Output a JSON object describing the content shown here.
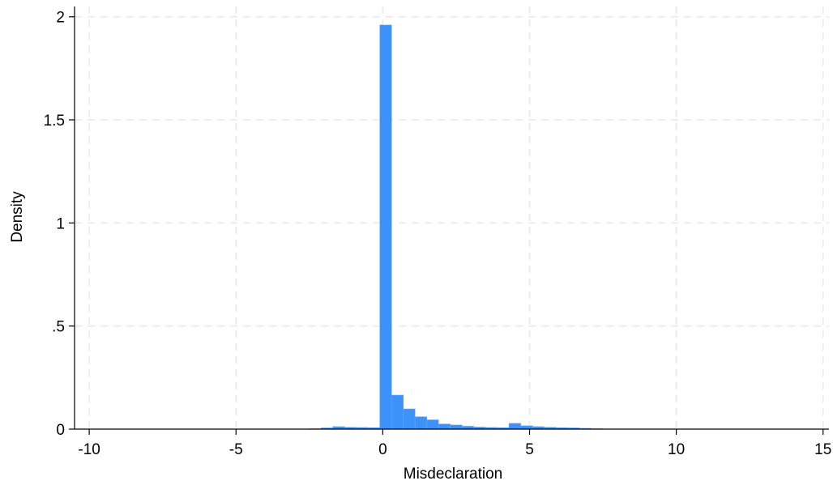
{
  "chart_data": {
    "type": "bar",
    "xlabel": "Misdeclaration",
    "ylabel": "Density",
    "xlim": [
      -10.5,
      15.2
    ],
    "ylim": [
      0,
      2.05
    ],
    "x_ticks": [
      -10,
      -5,
      0,
      5,
      10,
      15
    ],
    "x_tick_labels": [
      "-10",
      "-5",
      "0",
      "5",
      "10",
      "15"
    ],
    "y_ticks": [
      0,
      0.5,
      1,
      1.5,
      2
    ],
    "y_tick_labels": [
      "0",
      ".5",
      "1",
      "1.5",
      "2"
    ],
    "grid": true,
    "bar_color": "#3d92fa",
    "bins": [
      {
        "x0": -2.5,
        "x1": -2.1,
        "value": 0.002
      },
      {
        "x0": -2.1,
        "x1": -1.7,
        "value": 0.006
      },
      {
        "x0": -1.7,
        "x1": -1.3,
        "value": 0.012
      },
      {
        "x0": -1.3,
        "x1": -0.9,
        "value": 0.009
      },
      {
        "x0": -0.9,
        "x1": -0.5,
        "value": 0.008
      },
      {
        "x0": -0.5,
        "x1": -0.1,
        "value": 0.007
      },
      {
        "x0": -0.1,
        "x1": 0.3,
        "value": 1.96
      },
      {
        "x0": 0.3,
        "x1": 0.7,
        "value": 0.165
      },
      {
        "x0": 0.7,
        "x1": 1.1,
        "value": 0.098
      },
      {
        "x0": 1.1,
        "x1": 1.5,
        "value": 0.06
      },
      {
        "x0": 1.5,
        "x1": 1.9,
        "value": 0.045
      },
      {
        "x0": 1.9,
        "x1": 2.3,
        "value": 0.025
      },
      {
        "x0": 2.3,
        "x1": 2.7,
        "value": 0.02
      },
      {
        "x0": 2.7,
        "x1": 3.1,
        "value": 0.014
      },
      {
        "x0": 3.1,
        "x1": 3.5,
        "value": 0.01
      },
      {
        "x0": 3.5,
        "x1": 3.9,
        "value": 0.008
      },
      {
        "x0": 3.9,
        "x1": 4.3,
        "value": 0.007
      },
      {
        "x0": 4.3,
        "x1": 4.7,
        "value": 0.028
      },
      {
        "x0": 4.7,
        "x1": 5.1,
        "value": 0.016
      },
      {
        "x0": 5.1,
        "x1": 5.5,
        "value": 0.012
      },
      {
        "x0": 5.5,
        "x1": 5.9,
        "value": 0.009
      },
      {
        "x0": 5.9,
        "x1": 6.3,
        "value": 0.007
      },
      {
        "x0": 6.3,
        "x1": 6.7,
        "value": 0.006
      },
      {
        "x0": 6.7,
        "x1": 7.1,
        "value": 0.004
      },
      {
        "x0": 7.1,
        "x1": 7.5,
        "value": 0.002
      }
    ]
  }
}
